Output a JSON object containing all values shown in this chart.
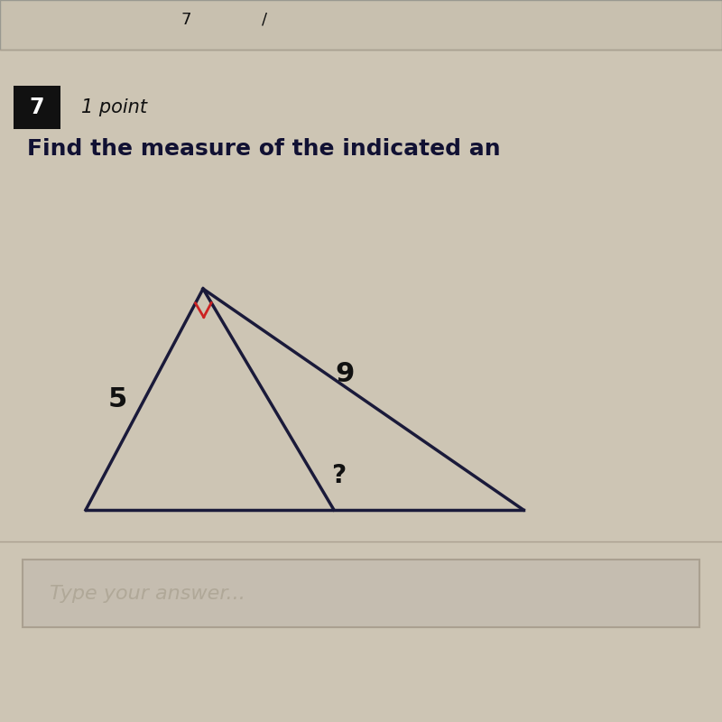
{
  "title": "Find the measure of the indicated an",
  "question_num": "7",
  "point_label": "1 point",
  "side_left": "5",
  "side_hyp": "9",
  "angle_label": "?",
  "answer_placeholder": "Type your answer...",
  "bg_color": "#cdc5b4",
  "line_color": "#1a1a3a",
  "right_angle_color": "#cc2222",
  "text_color": "#111111",
  "title_color": "#111133",
  "gray_text_color": "#b0a898",
  "panel_color": "#cdc5b4",
  "top_strip_color": "#c8c0af",
  "answer_box_color": "#c5bdb0",
  "answer_box_border": "#aaa090"
}
